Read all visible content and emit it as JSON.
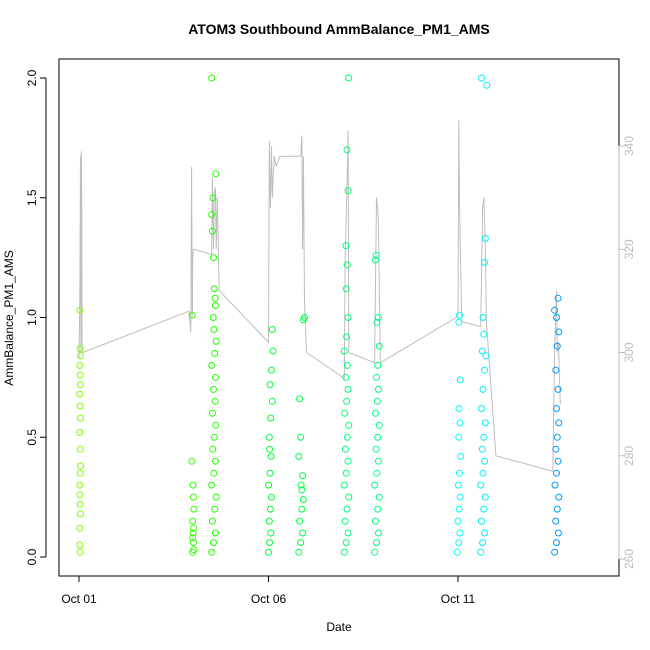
{
  "chart_data": {
    "type": "scatter",
    "title": "ATOM3 Southbound AmmBalance_PM1_AMS",
    "xlabel": "Date",
    "ylabel": "AmmBalance_PM1_AMS",
    "x_ticks": [
      {
        "day": 1,
        "label": "Oct 01"
      },
      {
        "day": 6,
        "label": "Oct 06"
      },
      {
        "day": 11,
        "label": "Oct 11"
      }
    ],
    "xlim_days": [
      0.97,
      14.0
    ],
    "ylim": [
      0,
      2.0
    ],
    "y_ticks": [
      "0.0",
      "0.5",
      "1.0",
      "1.5",
      "2.0"
    ],
    "y_tick_values": [
      0,
      0.5,
      1.0,
      1.5,
      2.0
    ],
    "right_axis": {
      "ylim": [
        258,
        346
      ],
      "ticks": [
        "260",
        "280",
        "300",
        "320",
        "340"
      ],
      "tick_values": [
        260,
        280,
        300,
        320,
        340
      ],
      "color": "#bebebe"
    },
    "grid": false,
    "legend": "none",
    "series": [
      {
        "color": "#7fff00",
        "points": [
          [
            1.02,
            0.05
          ],
          [
            1.02,
            0.12
          ],
          [
            1.03,
            0.22
          ],
          [
            1.02,
            0.3
          ],
          [
            1.04,
            0.38
          ],
          [
            1.03,
            0.45
          ],
          [
            1.02,
            0.52
          ],
          [
            1.04,
            0.58
          ],
          [
            1.03,
            0.63
          ],
          [
            1.02,
            0.68
          ],
          [
            1.04,
            0.72
          ],
          [
            1.03,
            0.76
          ],
          [
            1.02,
            0.8
          ],
          [
            1.04,
            0.84
          ],
          [
            1.03,
            0.87
          ],
          [
            1.02,
            1.03
          ],
          [
            1.03,
            0.02
          ],
          [
            1.04,
            0.18
          ],
          [
            1.02,
            0.26
          ],
          [
            1.03,
            0.35
          ]
        ]
      },
      {
        "color": "#33ff00",
        "points": [
          [
            4.0,
            0.02
          ],
          [
            4.02,
            0.06
          ],
          [
            4.01,
            0.1
          ],
          [
            4.0,
            0.15
          ],
          [
            4.03,
            0.2
          ],
          [
            4.02,
            0.25
          ],
          [
            4.01,
            0.3
          ],
          [
            3.98,
            0.4
          ],
          [
            3.99,
            1.01
          ],
          [
            4.02,
            0.12
          ],
          [
            4.03,
            0.03
          ],
          [
            4.0,
            0.08
          ]
        ]
      },
      {
        "color": "#22ff00",
        "points": [
          [
            4.5,
            0.02
          ],
          [
            4.55,
            0.06
          ],
          [
            4.6,
            0.1
          ],
          [
            4.52,
            0.15
          ],
          [
            4.58,
            0.2
          ],
          [
            4.62,
            0.25
          ],
          [
            4.5,
            0.3
          ],
          [
            4.56,
            0.35
          ],
          [
            4.6,
            0.4
          ],
          [
            4.53,
            0.45
          ],
          [
            4.57,
            0.5
          ],
          [
            4.61,
            0.55
          ],
          [
            4.52,
            0.6
          ],
          [
            4.59,
            0.65
          ],
          [
            4.55,
            0.7
          ],
          [
            4.6,
            0.75
          ],
          [
            4.5,
            0.8
          ],
          [
            4.58,
            0.85
          ],
          [
            4.62,
            0.9
          ],
          [
            4.56,
            0.95
          ],
          [
            4.6,
            1.05
          ],
          [
            4.57,
            1.12
          ],
          [
            4.55,
            1.25
          ],
          [
            4.52,
            1.36
          ],
          [
            4.5,
            1.43
          ],
          [
            4.53,
            1.5
          ],
          [
            4.61,
            1.6
          ],
          [
            4.5,
            2.0
          ],
          [
            4.59,
            1.08
          ],
          [
            4.54,
            1.0
          ]
        ]
      },
      {
        "color": "#00ff33",
        "points": [
          [
            6.0,
            0.02
          ],
          [
            6.03,
            0.06
          ],
          [
            6.06,
            0.1
          ],
          [
            6.02,
            0.15
          ],
          [
            6.05,
            0.2
          ],
          [
            6.08,
            0.25
          ],
          [
            6.0,
            0.3
          ],
          [
            6.04,
            0.35
          ],
          [
            6.07,
            0.42
          ],
          [
            6.02,
            0.5
          ],
          [
            6.06,
            0.58
          ],
          [
            6.1,
            0.65
          ],
          [
            6.04,
            0.72
          ],
          [
            6.08,
            0.78
          ],
          [
            6.12,
            0.86
          ],
          [
            6.1,
            0.95
          ],
          [
            6.03,
            0.45
          ]
        ]
      },
      {
        "color": "#00ff44",
        "points": [
          [
            6.8,
            0.02
          ],
          [
            6.85,
            0.06
          ],
          [
            6.9,
            0.1
          ],
          [
            6.82,
            0.15
          ],
          [
            6.88,
            0.2
          ],
          [
            6.92,
            0.24
          ],
          [
            6.86,
            0.3
          ],
          [
            6.9,
            0.34
          ],
          [
            6.8,
            0.42
          ],
          [
            6.85,
            0.5
          ],
          [
            6.82,
            0.66
          ],
          [
            6.92,
            0.99
          ],
          [
            6.95,
            1.0
          ],
          [
            6.88,
            0.28
          ]
        ]
      },
      {
        "color": "#00ff77",
        "points": [
          [
            8.0,
            0.02
          ],
          [
            8.05,
            0.06
          ],
          [
            8.1,
            0.1
          ],
          [
            8.02,
            0.15
          ],
          [
            8.07,
            0.2
          ],
          [
            8.12,
            0.25
          ],
          [
            8.0,
            0.3
          ],
          [
            8.05,
            0.35
          ],
          [
            8.1,
            0.4
          ],
          [
            8.03,
            0.45
          ],
          [
            8.08,
            0.5
          ],
          [
            8.12,
            0.55
          ],
          [
            8.01,
            0.6
          ],
          [
            8.06,
            0.65
          ],
          [
            8.1,
            0.7
          ],
          [
            8.04,
            0.75
          ],
          [
            8.08,
            0.8
          ],
          [
            8.0,
            0.86
          ],
          [
            8.06,
            0.92
          ],
          [
            8.1,
            1.0
          ],
          [
            8.05,
            1.12
          ],
          [
            8.08,
            1.22
          ],
          [
            8.04,
            1.3
          ],
          [
            8.1,
            1.53
          ],
          [
            8.11,
            2.0
          ],
          [
            8.07,
            1.7
          ]
        ]
      },
      {
        "color": "#00ff88",
        "points": [
          [
            8.8,
            0.02
          ],
          [
            8.85,
            0.06
          ],
          [
            8.9,
            0.1
          ],
          [
            8.82,
            0.15
          ],
          [
            8.88,
            0.2
          ],
          [
            8.92,
            0.25
          ],
          [
            8.8,
            0.3
          ],
          [
            8.86,
            0.35
          ],
          [
            8.9,
            0.4
          ],
          [
            8.84,
            0.45
          ],
          [
            8.88,
            0.5
          ],
          [
            8.92,
            0.55
          ],
          [
            8.82,
            0.6
          ],
          [
            8.87,
            0.65
          ],
          [
            8.9,
            0.7
          ],
          [
            8.85,
            0.75
          ],
          [
            8.88,
            0.8
          ],
          [
            8.92,
            0.88
          ],
          [
            8.86,
            0.98
          ],
          [
            8.9,
            1.0
          ],
          [
            8.82,
            1.24
          ],
          [
            8.84,
            1.26
          ]
        ]
      },
      {
        "color": "#00ffff",
        "points": [
          [
            10.98,
            0.02
          ],
          [
            11.02,
            0.06
          ],
          [
            11.05,
            0.1
          ],
          [
            11.0,
            0.15
          ],
          [
            11.03,
            0.2
          ],
          [
            11.06,
            0.25
          ],
          [
            11.01,
            0.3
          ],
          [
            11.04,
            0.35
          ],
          [
            11.07,
            0.42
          ],
          [
            11.02,
            0.5
          ],
          [
            11.05,
            0.56
          ],
          [
            11.03,
            0.62
          ],
          [
            11.06,
            0.74
          ],
          [
            11.02,
            0.98
          ],
          [
            11.04,
            1.01
          ]
        ]
      },
      {
        "color": "#00f0ff",
        "points": [
          [
            11.6,
            0.02
          ],
          [
            11.65,
            0.06
          ],
          [
            11.7,
            0.1
          ],
          [
            11.62,
            0.15
          ],
          [
            11.68,
            0.2
          ],
          [
            11.72,
            0.25
          ],
          [
            11.6,
            0.3
          ],
          [
            11.66,
            0.35
          ],
          [
            11.7,
            0.4
          ],
          [
            11.64,
            0.45
          ],
          [
            11.68,
            0.5
          ],
          [
            11.72,
            0.56
          ],
          [
            11.62,
            0.62
          ],
          [
            11.66,
            0.7
          ],
          [
            11.7,
            0.78
          ],
          [
            11.64,
            0.86
          ],
          [
            11.74,
            0.84
          ],
          [
            11.68,
            0.93
          ],
          [
            11.66,
            1.0
          ],
          [
            11.7,
            1.23
          ],
          [
            11.62,
            2.0
          ],
          [
            11.76,
            1.97
          ],
          [
            11.72,
            1.33
          ]
        ]
      },
      {
        "color": "#0099ff",
        "points": [
          [
            13.55,
            0.02
          ],
          [
            13.6,
            0.06
          ],
          [
            13.65,
            0.1
          ],
          [
            13.58,
            0.15
          ],
          [
            13.62,
            0.2
          ],
          [
            13.66,
            0.25
          ],
          [
            13.56,
            0.3
          ],
          [
            13.6,
            0.35
          ],
          [
            13.64,
            0.4
          ],
          [
            13.58,
            0.45
          ],
          [
            13.62,
            0.5
          ],
          [
            13.66,
            0.56
          ],
          [
            13.6,
            0.62
          ],
          [
            13.64,
            0.7
          ],
          [
            13.58,
            0.78
          ],
          [
            13.62,
            0.88
          ],
          [
            13.66,
            0.94
          ],
          [
            13.55,
            1.03
          ],
          [
            13.64,
            1.08
          ],
          [
            13.6,
            1.0
          ]
        ]
      }
    ],
    "secondary_series": {
      "color": "#bebebe",
      "segments": [
        [
          [
            1.0,
            299
          ],
          [
            1.02,
            310
          ],
          [
            1.04,
            338
          ],
          [
            1.05,
            300
          ],
          [
            1.06,
            339
          ],
          [
            1.07,
            330
          ],
          [
            1.08,
            302
          ],
          [
            1.1,
            300
          ],
          [
            3.9,
            308
          ],
          [
            3.95,
            304
          ],
          [
            3.97,
            336
          ],
          [
            3.99,
            307
          ]
        ],
        [
          [
            3.99,
            307
          ],
          [
            4.0,
            318
          ],
          [
            4.02,
            320
          ],
          [
            4.5,
            319
          ],
          [
            4.52,
            334
          ],
          [
            4.55,
            320
          ],
          [
            4.57,
            331
          ],
          [
            4.6,
            332
          ],
          [
            4.62,
            320
          ],
          [
            4.65,
            330
          ]
        ],
        [
          [
            4.65,
            330
          ],
          [
            4.7,
            312
          ],
          [
            6.0,
            302
          ],
          [
            6.02,
            341
          ],
          [
            6.05,
            328
          ],
          [
            6.08,
            340
          ],
          [
            6.1,
            330
          ],
          [
            6.15,
            338
          ],
          [
            6.2,
            336
          ]
        ],
        [
          [
            6.2,
            336
          ],
          [
            6.3,
            338
          ],
          [
            6.85,
            338
          ],
          [
            6.88,
            342
          ],
          [
            6.9,
            320
          ],
          [
            6.92,
            338
          ],
          [
            6.95,
            310
          ]
        ],
        [
          [
            6.95,
            310
          ],
          [
            7.0,
            300
          ],
          [
            8.0,
            295
          ],
          [
            8.02,
            318
          ],
          [
            8.05,
            326
          ],
          [
            8.08,
            335
          ],
          [
            8.1,
            343
          ],
          [
            8.12,
            300
          ]
        ],
        [
          [
            8.12,
            300
          ],
          [
            8.8,
            298
          ],
          [
            8.85,
            330
          ],
          [
            8.88,
            328
          ],
          [
            8.9,
            325
          ],
          [
            8.95,
            298
          ]
        ],
        [
          [
            8.95,
            298
          ],
          [
            11.0,
            307
          ],
          [
            11.02,
            345
          ],
          [
            11.04,
            330
          ],
          [
            11.06,
            320
          ],
          [
            11.1,
            306
          ]
        ],
        [
          [
            11.1,
            306
          ],
          [
            11.6,
            305
          ],
          [
            11.65,
            328
          ],
          [
            11.68,
            330
          ],
          [
            11.7,
            326
          ],
          [
            11.72,
            320
          ],
          [
            11.75,
            306
          ]
        ],
        [
          [
            11.75,
            306
          ],
          [
            12.0,
            280
          ],
          [
            13.5,
            277
          ],
          [
            13.55,
            300
          ],
          [
            13.6,
            312
          ],
          [
            13.62,
            300
          ],
          [
            13.65,
            302
          ],
          [
            13.7,
            290
          ]
        ]
      ]
    }
  }
}
